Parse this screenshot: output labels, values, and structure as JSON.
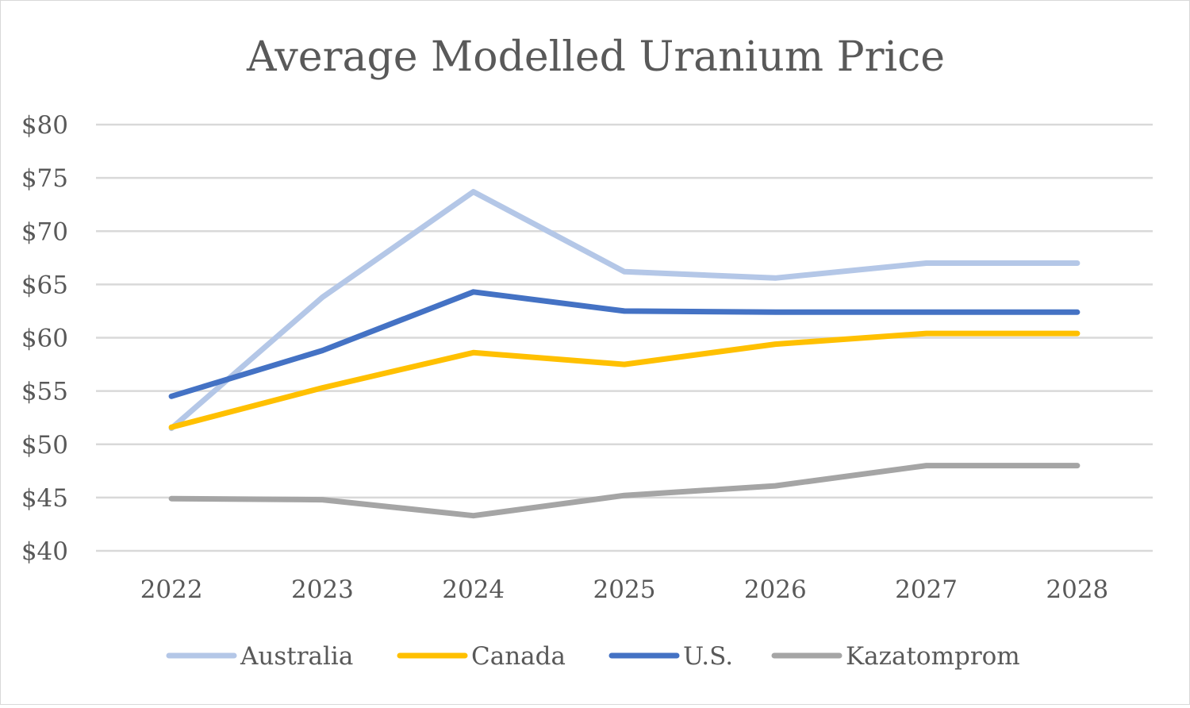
{
  "chart_data": {
    "type": "line",
    "title": "Average Modelled Uranium Price",
    "xlabel": "",
    "ylabel": "",
    "categories": [
      "2022",
      "2023",
      "2024",
      "2025",
      "2026",
      "2027",
      "2028"
    ],
    "y_tick_labels": [
      "$40",
      "$45",
      "$50",
      "$55",
      "$60",
      "$65",
      "$70",
      "$75",
      "$80"
    ],
    "y_ticks": [
      40,
      45,
      50,
      55,
      60,
      65,
      70,
      75,
      80
    ],
    "ylim": [
      40,
      80
    ],
    "grid": true,
    "legend_position": "bottom",
    "series": [
      {
        "name": "Australia",
        "color": "#b4c7e7",
        "values": [
          51.5,
          63.8,
          73.7,
          66.2,
          65.6,
          67.0,
          67.0
        ]
      },
      {
        "name": "Canada",
        "color": "#ffc000",
        "values": [
          51.6,
          55.3,
          58.6,
          57.5,
          59.4,
          60.4,
          60.4
        ]
      },
      {
        "name": "U.S.",
        "color": "#4472c4",
        "values": [
          54.5,
          58.8,
          64.3,
          62.5,
          62.4,
          62.4,
          62.4
        ]
      },
      {
        "name": "Kazatomprom",
        "color": "#a5a5a5",
        "values": [
          44.9,
          44.8,
          43.3,
          45.2,
          46.1,
          48.0,
          48.0
        ]
      }
    ]
  }
}
